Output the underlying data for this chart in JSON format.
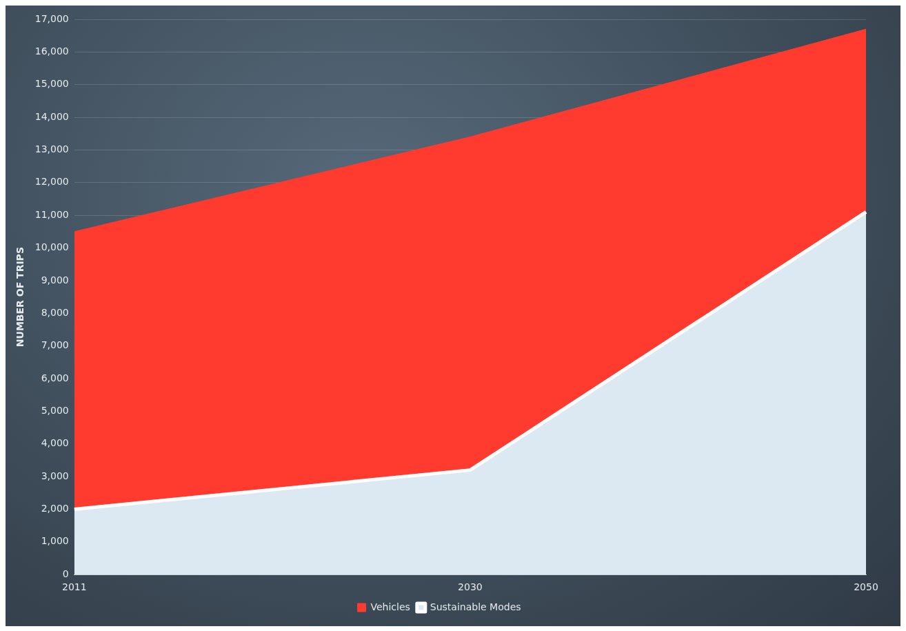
{
  "chart_data": {
    "type": "area",
    "stacked": true,
    "ylabel": "NUMBER OF TRIPS",
    "categories": [
      "2011",
      "2030",
      "2050"
    ],
    "series": [
      {
        "name": "Sustainable Modes",
        "color": "#dce8f2",
        "values": [
          2000,
          3200,
          11100
        ]
      },
      {
        "name": "Vehicles",
        "color": "#ff3b30",
        "values": [
          8500,
          10200,
          5600
        ]
      }
    ],
    "ylim": [
      0,
      17000
    ],
    "yticks": [
      0,
      {
        "value": 1000,
        "label": "1,000"
      },
      {
        "value": 2000,
        "label": "2,000"
      },
      {
        "value": 3000,
        "label": "3,000"
      },
      {
        "value": 4000,
        "label": "4,000"
      },
      {
        "value": 5000,
        "label": "5,000"
      },
      {
        "value": 6000,
        "label": "6,000"
      },
      {
        "value": 7000,
        "label": "7,000"
      },
      {
        "value": 8000,
        "label": "8,000"
      },
      {
        "value": 9000,
        "label": "9,000"
      },
      {
        "value": 10000,
        "label": "10,000"
      },
      {
        "value": 11000,
        "label": "11,000"
      },
      {
        "value": 12000,
        "label": "12,000"
      },
      {
        "value": 13000,
        "label": "13,000"
      },
      {
        "value": 14000,
        "label": "14,000"
      },
      {
        "value": 15000,
        "label": "15,000"
      },
      {
        "value": 16000,
        "label": "16,000"
      },
      {
        "value": 17000,
        "label": "17,000"
      }
    ],
    "grid": "y",
    "legend": "bottom"
  }
}
